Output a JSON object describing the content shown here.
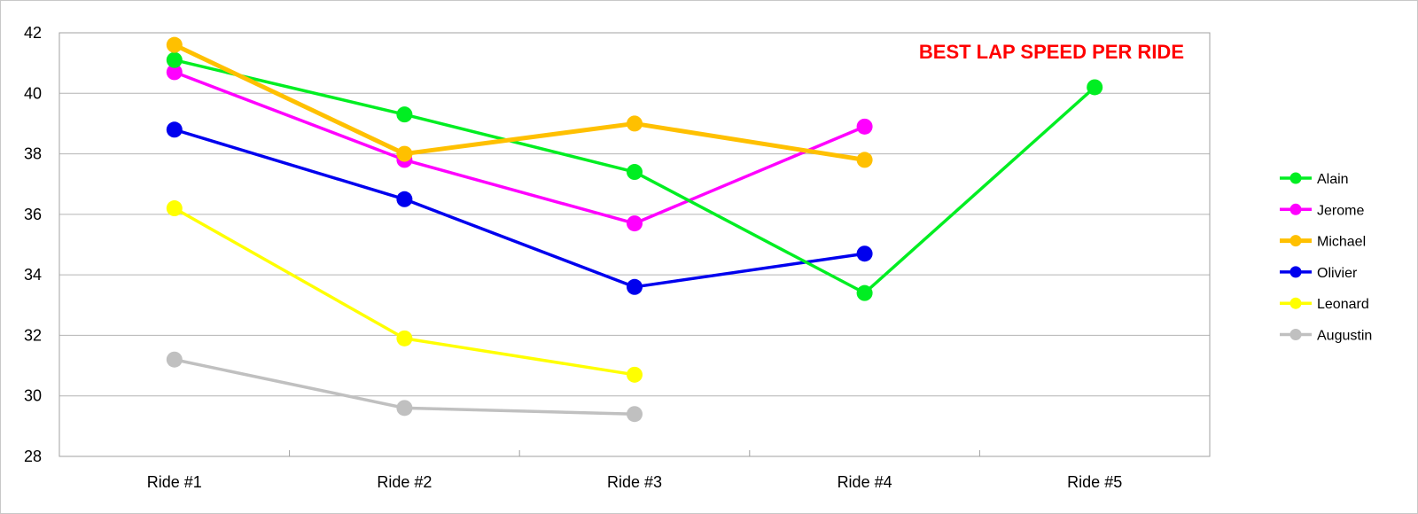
{
  "chart_data": {
    "type": "line",
    "title": "BEST LAP SPEED PER RIDE",
    "title_color": "#ff0000",
    "xlabel": "",
    "ylabel": "",
    "categories": [
      "Ride #1",
      "Ride #2",
      "Ride #3",
      "Ride #4",
      "Ride #5"
    ],
    "ylim": [
      28,
      42
    ],
    "yticks": [
      28,
      30,
      32,
      34,
      36,
      38,
      40,
      42
    ],
    "grid": true,
    "legend_position": "right",
    "series": [
      {
        "name": "Alain",
        "color": "#00ee22",
        "values": [
          41.1,
          39.3,
          37.4,
          33.4,
          40.2
        ]
      },
      {
        "name": "Jerome",
        "color": "#ff00ff",
        "values": [
          40.7,
          37.8,
          35.7,
          38.9,
          null
        ]
      },
      {
        "name": "Michael",
        "color": "#ffc000",
        "values": [
          41.6,
          38.0,
          39.0,
          37.8,
          null
        ]
      },
      {
        "name": "Olivier",
        "color": "#0000ee",
        "values": [
          38.8,
          36.5,
          33.6,
          34.7,
          null
        ]
      },
      {
        "name": "Leonard",
        "color": "#ffff00",
        "values": [
          36.2,
          31.9,
          30.7,
          null,
          null
        ]
      },
      {
        "name": "Augustin",
        "color": "#c0c0c0",
        "values": [
          31.2,
          29.6,
          29.4,
          null,
          null
        ]
      }
    ]
  }
}
